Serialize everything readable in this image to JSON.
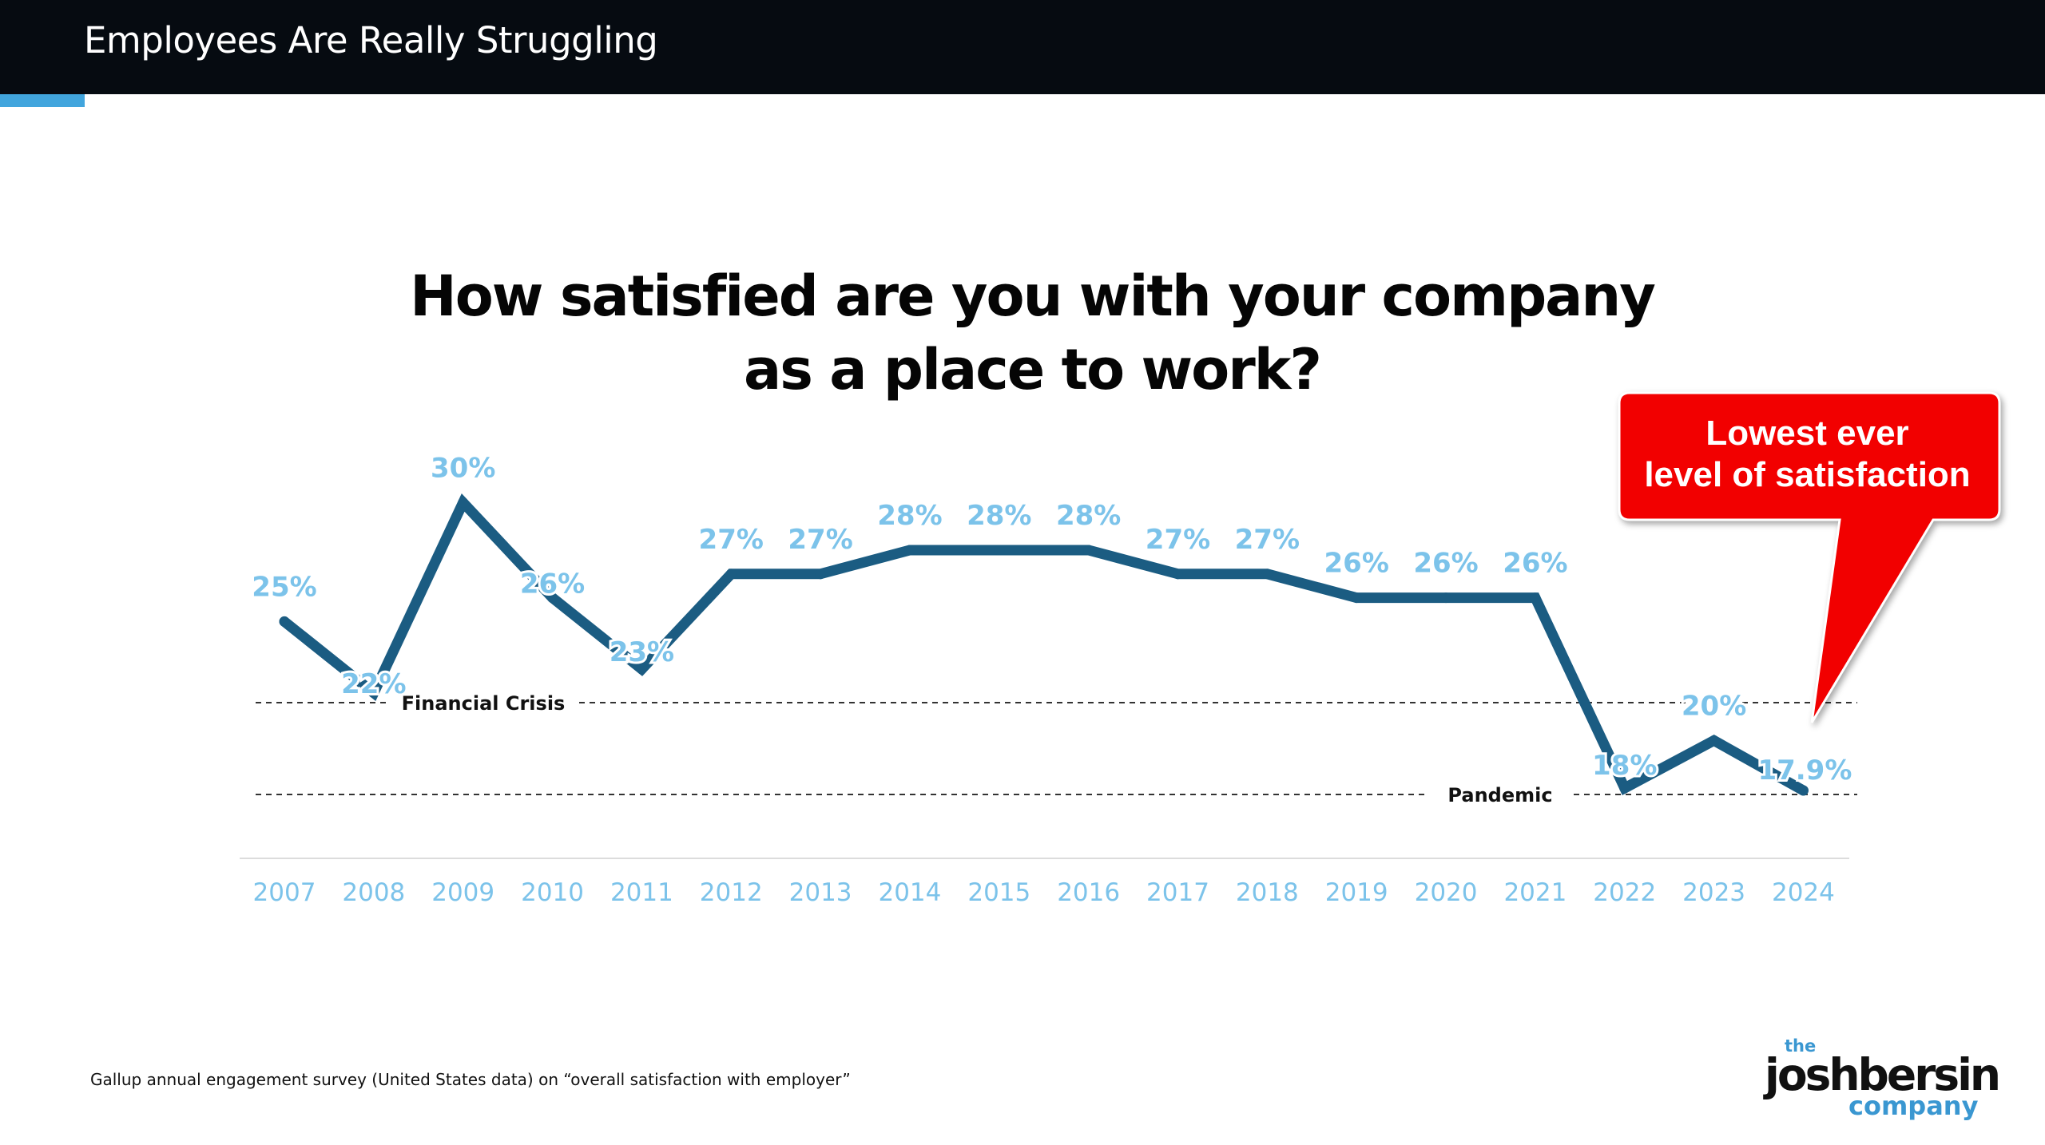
{
  "header": {
    "title": "Employees Are Really Struggling"
  },
  "colors": {
    "header_bg": "#060b11",
    "accent": "#41a5dd",
    "line": "#1b5c82",
    "labels": "#7cc3ea",
    "callout": "#f20000"
  },
  "chart_data": {
    "type": "line",
    "title_lines": [
      "How satisfied are you with your company",
      "as a place to work?"
    ],
    "categories": [
      "2007",
      "2008",
      "2009",
      "2010",
      "2011",
      "2012",
      "2013",
      "2014",
      "2015",
      "2016",
      "2017",
      "2018",
      "2019",
      "2020",
      "2021",
      "2022",
      "2023",
      "2024"
    ],
    "values": [
      25,
      22,
      30,
      26,
      23,
      27,
      27,
      28,
      28,
      28,
      27,
      27,
      26,
      26,
      26,
      18,
      20,
      17.9
    ],
    "data_labels": [
      "25%",
      "22%",
      "30%",
      "26%",
      "23%",
      "27%",
      "27%",
      "28%",
      "28%",
      "28%",
      "27%",
      "27%",
      "26%",
      "26%",
      "26%",
      "18%",
      "20%",
      "17.9%"
    ],
    "xlabel": "",
    "ylabel": "",
    "ylim": [
      16,
      31
    ],
    "grid": false,
    "reference_lines": [
      {
        "label": "Financial Crisis",
        "value": 22
      },
      {
        "label": "Pandemic",
        "value": 18
      }
    ],
    "callout": {
      "lines": [
        "Lowest ever",
        "level of satisfaction"
      ],
      "points_to": "2024"
    }
  },
  "footnote": "Gallup annual engagement survey (United States data) on “overall satisfaction with employer”",
  "logo": {
    "the": "the",
    "name": "joshbersin",
    "company": "company"
  }
}
